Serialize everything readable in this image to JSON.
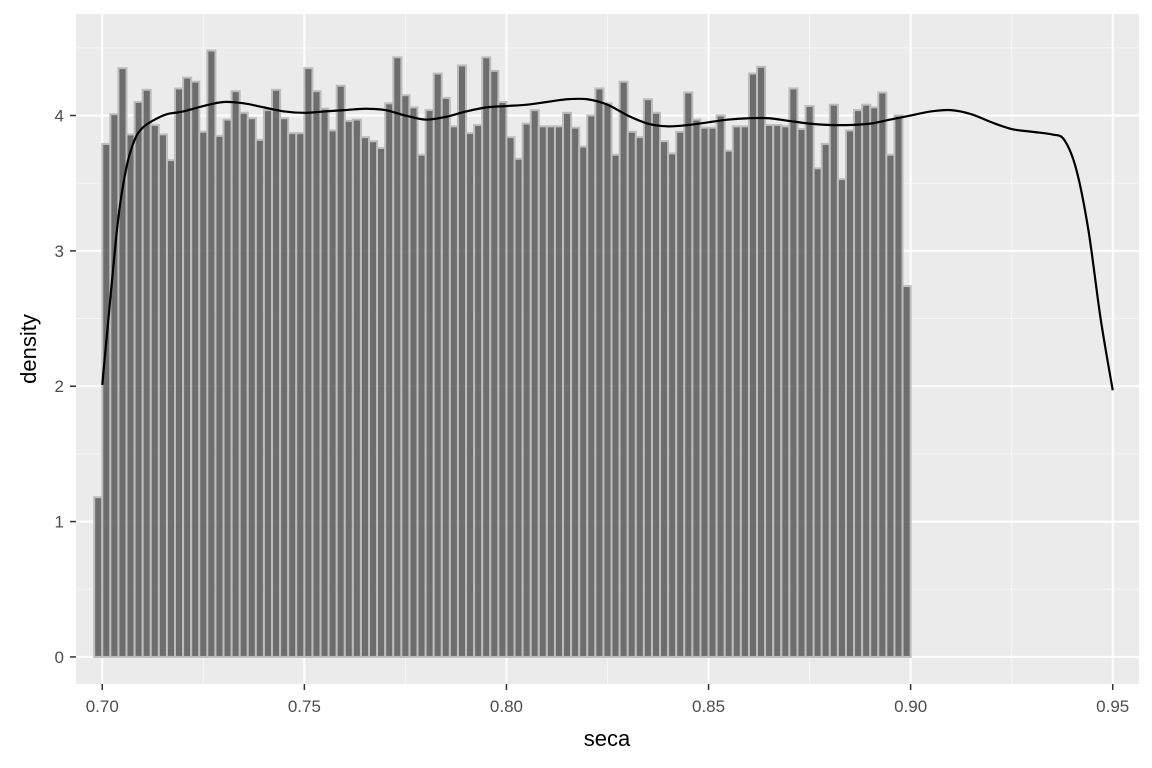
{
  "chart_data": {
    "type": "bar",
    "subtype": "histogram_with_density",
    "xlabel": "seca",
    "ylabel": "density",
    "xlim": [
      0.6935,
      0.9565
    ],
    "ylim": [
      -0.2,
      4.75
    ],
    "x_ticks": [
      0.7,
      0.75,
      0.8,
      0.85,
      0.9,
      0.95
    ],
    "x_tick_labels": [
      "0.70",
      "0.75",
      "0.80",
      "0.85",
      "0.90",
      "0.95"
    ],
    "x_minor_ticks": [
      0.725,
      0.775,
      0.825,
      0.875,
      0.925
    ],
    "y_ticks": [
      0,
      1,
      2,
      3,
      4
    ],
    "y_tick_labels": [
      "0",
      "1",
      "2",
      "3",
      "4"
    ],
    "y_minor_ticks": [
      0.5,
      1.5,
      2.5,
      3.5,
      4.5
    ],
    "grid": true,
    "bin_start": 0.698,
    "bin_width": 0.002,
    "bin_values": [
      1.18,
      3.79,
      4.01,
      4.35,
      3.86,
      4.1,
      4.19,
      3.93,
      3.86,
      3.67,
      4.2,
      4.28,
      4.25,
      3.88,
      4.48,
      3.85,
      3.97,
      4.18,
      4.02,
      3.98,
      3.82,
      4.04,
      4.19,
      3.98,
      3.87,
      3.87,
      4.35,
      4.18,
      4.05,
      3.89,
      4.22,
      3.96,
      3.97,
      3.84,
      3.81,
      3.76,
      4.09,
      4.43,
      4.15,
      4.06,
      3.71,
      4.04,
      4.31,
      4.13,
      3.92,
      4.37,
      3.87,
      3.93,
      4.43,
      4.33,
      4.1,
      3.84,
      3.68,
      3.94,
      4.04,
      3.92,
      3.92,
      3.92,
      4.02,
      3.91,
      3.77,
      4.0,
      4.2,
      4.09,
      3.71,
      4.25,
      3.88,
      3.84,
      4.12,
      4.02,
      3.81,
      3.72,
      3.88,
      4.17,
      3.97,
      3.91,
      3.91,
      4.0,
      3.74,
      3.92,
      3.92,
      4.31,
      4.36,
      3.93,
      3.93,
      3.92,
      4.2,
      3.9,
      4.07,
      3.61,
      3.79,
      4.08,
      3.53,
      3.89,
      4.04,
      4.08,
      4.06,
      4.17,
      3.71,
      4.0,
      2.74
    ],
    "density_x": [
      0.7,
      0.702,
      0.704,
      0.706,
      0.708,
      0.71,
      0.713,
      0.716,
      0.72,
      0.725,
      0.73,
      0.735,
      0.74,
      0.745,
      0.75,
      0.755,
      0.76,
      0.765,
      0.77,
      0.775,
      0.78,
      0.785,
      0.79,
      0.795,
      0.8,
      0.805,
      0.81,
      0.815,
      0.82,
      0.825,
      0.83,
      0.835,
      0.84,
      0.845,
      0.85,
      0.855,
      0.86,
      0.865,
      0.87,
      0.875,
      0.88,
      0.885,
      0.89,
      0.895,
      0.9,
      0.905,
      0.91,
      0.915,
      0.92,
      0.925,
      0.93,
      0.935,
      0.938,
      0.941,
      0.944,
      0.947,
      0.95
    ],
    "density_y": [
      2.01,
      2.65,
      3.25,
      3.62,
      3.82,
      3.91,
      3.97,
      4.01,
      4.03,
      4.07,
      4.1,
      4.09,
      4.06,
      4.03,
      4.02,
      4.03,
      4.04,
      4.05,
      4.04,
      4.0,
      3.97,
      3.99,
      4.03,
      4.06,
      4.07,
      4.08,
      4.1,
      4.12,
      4.12,
      4.08,
      4.0,
      3.94,
      3.92,
      3.93,
      3.95,
      3.97,
      3.98,
      3.98,
      3.96,
      3.94,
      3.93,
      3.93,
      3.94,
      3.97,
      4.0,
      4.03,
      4.04,
      4.01,
      3.95,
      3.9,
      3.88,
      3.86,
      3.82,
      3.6,
      3.15,
      2.5,
      1.97
    ],
    "colors": {
      "panel_background": "#ebebeb",
      "grid_major": "#ffffff",
      "bar_fill": "#595959",
      "bar_outline": "#bdbdbd",
      "density_line": "#000000",
      "tick_label": "#4d4d4d"
    }
  }
}
